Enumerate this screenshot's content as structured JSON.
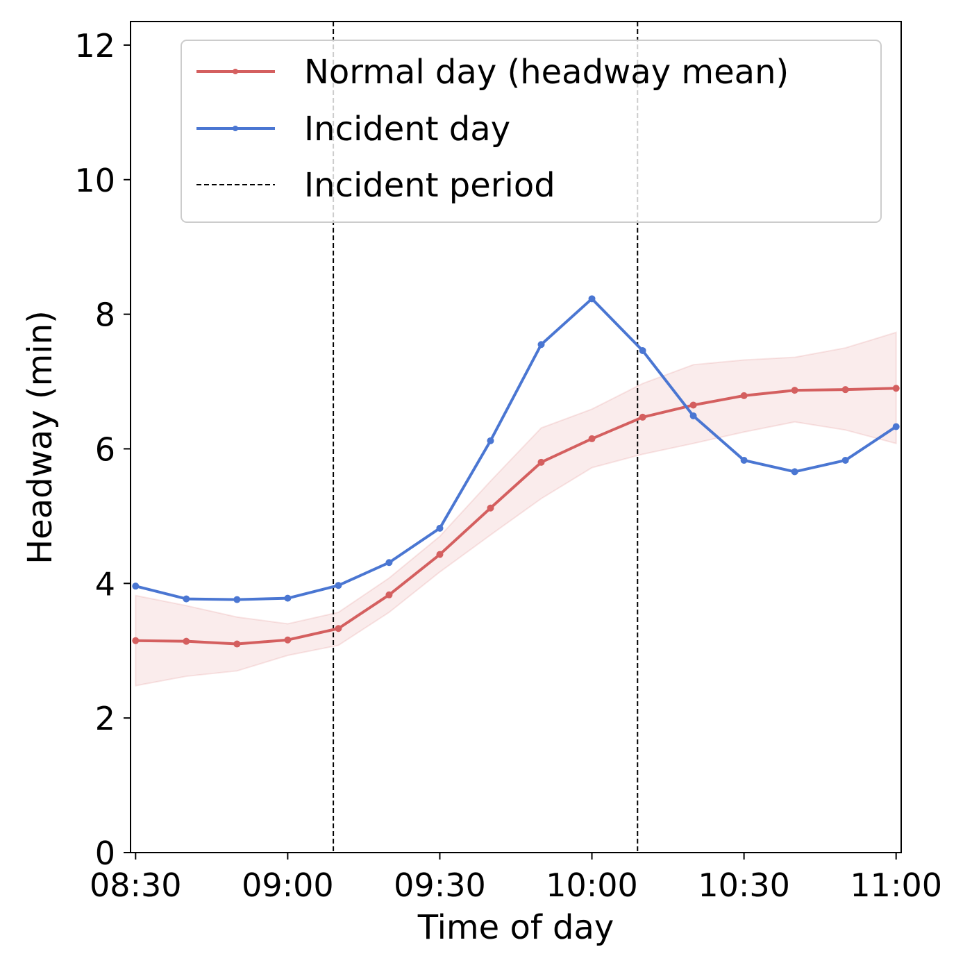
{
  "chart_data": {
    "type": "line",
    "xlabel": "Time of day",
    "ylabel": "Headway (min)",
    "x_minutes": [
      0,
      10,
      20,
      30,
      40,
      50,
      60,
      70,
      80,
      90,
      100,
      110,
      120,
      130,
      140,
      150
    ],
    "xlim": [
      -1,
      151
    ],
    "ylim": [
      0,
      12.35
    ],
    "x_ticks": [
      0,
      30,
      60,
      90,
      120,
      150
    ],
    "x_tick_labels": [
      "08:30",
      "09:00",
      "09:30",
      "10:00",
      "10:30",
      "11:00"
    ],
    "y_ticks": [
      0,
      2,
      4,
      6,
      8,
      10,
      12
    ],
    "y_tick_labels": [
      "0",
      "2",
      "4",
      "6",
      "8",
      "10",
      "12"
    ],
    "series": [
      {
        "name": "Normal day (headway mean)",
        "color": "#d45f5f",
        "values": [
          3.15,
          3.14,
          3.1,
          3.16,
          3.33,
          3.83,
          4.43,
          5.12,
          5.8,
          6.15,
          6.47,
          6.65,
          6.79,
          6.87,
          6.88,
          6.9
        ],
        "band_lower": [
          2.48,
          2.62,
          2.7,
          2.93,
          3.08,
          3.57,
          4.17,
          4.72,
          5.26,
          5.72,
          5.92,
          6.08,
          6.25,
          6.4,
          6.28,
          6.08
        ],
        "band_upper": [
          3.82,
          3.67,
          3.5,
          3.4,
          3.57,
          4.08,
          4.7,
          5.52,
          6.31,
          6.59,
          6.97,
          7.25,
          7.32,
          7.36,
          7.5,
          7.73
        ]
      },
      {
        "name": "Incident day",
        "color": "#4a76d2",
        "values": [
          3.96,
          3.77,
          3.76,
          3.78,
          3.97,
          4.31,
          4.82,
          6.12,
          7.55,
          8.23,
          7.46,
          6.49,
          5.83,
          5.66,
          5.83,
          6.33
        ]
      }
    ],
    "vlines": {
      "name": "Incident period",
      "x_minutes": [
        39,
        99
      ],
      "color": "#000000"
    },
    "band_color": "#d45f5f",
    "legend_placement": "upper-right",
    "grid": false
  }
}
